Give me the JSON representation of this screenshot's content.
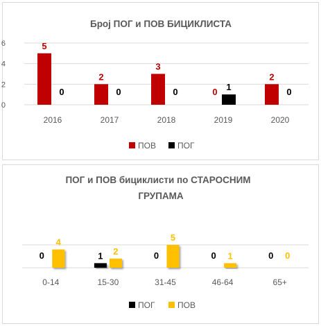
{
  "chart_data": [
    {
      "type": "bar",
      "title": "Број ПОГ и ПОВ БИЦИКЛИСТА",
      "categories": [
        "2016",
        "2017",
        "2018",
        "2019",
        "2020"
      ],
      "series": [
        {
          "name": "ПОВ",
          "color": "#C00000",
          "values": [
            5,
            2,
            3,
            0,
            2
          ]
        },
        {
          "name": "ПОГ",
          "color": "#000000",
          "values": [
            0,
            0,
            0,
            1,
            0
          ]
        }
      ],
      "ylim": [
        0,
        6
      ],
      "yticks": [
        "0",
        "2",
        "4",
        "6"
      ],
      "grid": true,
      "legend_position": "bottom",
      "legend": [
        "ПОВ",
        "ПОГ"
      ]
    },
    {
      "type": "bar",
      "title_lines": [
        "ПОГ  и ПОВ бициклисти по СТАРОСНИМ",
        "ГРУПАМА"
      ],
      "categories": [
        "0-14",
        "15-30",
        "31-45",
        "46-64",
        "65+"
      ],
      "series": [
        {
          "name": "ПОГ",
          "color": "#000000",
          "values": [
            0,
            1,
            0,
            0,
            0
          ]
        },
        {
          "name": "ПОВ",
          "color": "#FFC000",
          "values": [
            4,
            2,
            5,
            1,
            0
          ]
        }
      ],
      "ylim": [
        0,
        5
      ],
      "grid": true,
      "legend_position": "bottom",
      "legend": [
        "ПОГ",
        "ПОВ"
      ]
    }
  ]
}
